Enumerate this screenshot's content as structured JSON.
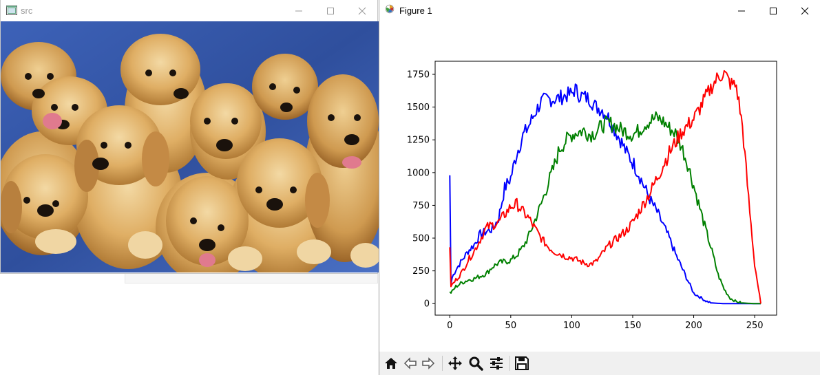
{
  "src_window": {
    "title": "src",
    "image_desc_icon": "image-window-icon",
    "controls": [
      "minimize-icon",
      "maximize-icon",
      "close-icon"
    ]
  },
  "figure_window": {
    "title": "Figure 1",
    "app_icon": "matplotlib-icon",
    "controls": [
      "minimize-icon",
      "maximize-icon",
      "close-icon"
    ],
    "toolbar": [
      "home-icon",
      "back-icon",
      "forward-icon",
      "pan-icon",
      "zoom-icon",
      "configure-subplots-icon",
      "save-icon"
    ]
  },
  "chart_data": {
    "type": "line",
    "title": "",
    "xlabel": "",
    "ylabel": "",
    "xlim": [
      -12,
      268
    ],
    "ylim": [
      -88,
      1850
    ],
    "xticks": [
      0,
      50,
      100,
      150,
      200,
      250
    ],
    "yticks": [
      0,
      250,
      500,
      750,
      1000,
      1250,
      1500,
      1750
    ],
    "grid": false,
    "series": [
      {
        "color": "#0000ff",
        "x": [
          0,
          1,
          2,
          5,
          10,
          15,
          20,
          25,
          30,
          35,
          40,
          45,
          50,
          55,
          60,
          65,
          70,
          75,
          80,
          85,
          90,
          95,
          100,
          103,
          105,
          110,
          115,
          120,
          125,
          130,
          135,
          140,
          145,
          150,
          155,
          160,
          165,
          170,
          175,
          180,
          185,
          190,
          195,
          200,
          205,
          210,
          215,
          220,
          225,
          230,
          240,
          250,
          255
        ],
        "y": [
          980,
          150,
          200,
          260,
          330,
          400,
          450,
          530,
          550,
          570,
          650,
          880,
          960,
          1150,
          1280,
          1360,
          1460,
          1540,
          1560,
          1560,
          1570,
          1590,
          1600,
          1640,
          1600,
          1580,
          1560,
          1500,
          1480,
          1420,
          1330,
          1250,
          1150,
          1080,
          990,
          880,
          780,
          700,
          600,
          500,
          380,
          280,
          180,
          80,
          50,
          20,
          5,
          2,
          0,
          0,
          0,
          0,
          0
        ]
      },
      {
        "color": "#008000",
        "x": [
          0,
          1,
          5,
          10,
          15,
          20,
          25,
          30,
          35,
          40,
          45,
          50,
          55,
          60,
          65,
          70,
          75,
          80,
          85,
          90,
          95,
          100,
          105,
          110,
          115,
          120,
          125,
          130,
          135,
          140,
          145,
          150,
          155,
          160,
          165,
          170,
          175,
          180,
          185,
          190,
          195,
          200,
          205,
          210,
          215,
          220,
          225,
          230,
          235,
          240,
          245,
          250,
          255
        ],
        "y": [
          90,
          80,
          130,
          160,
          180,
          190,
          210,
          230,
          280,
          310,
          320,
          330,
          370,
          430,
          520,
          640,
          760,
          900,
          1030,
          1180,
          1240,
          1290,
          1310,
          1320,
          1290,
          1310,
          1360,
          1380,
          1360,
          1330,
          1310,
          1290,
          1320,
          1370,
          1400,
          1420,
          1390,
          1340,
          1300,
          1200,
          1070,
          900,
          730,
          560,
          400,
          220,
          110,
          40,
          15,
          5,
          2,
          0,
          0
        ]
      },
      {
        "color": "#ff0000",
        "x": [
          0,
          1,
          5,
          10,
          15,
          20,
          25,
          30,
          35,
          40,
          45,
          50,
          55,
          60,
          65,
          70,
          75,
          80,
          85,
          90,
          95,
          100,
          105,
          110,
          115,
          120,
          125,
          130,
          135,
          140,
          145,
          150,
          155,
          160,
          165,
          170,
          175,
          180,
          185,
          190,
          195,
          200,
          205,
          210,
          215,
          220,
          225,
          230,
          235,
          240,
          245,
          250,
          255
        ],
        "y": [
          430,
          130,
          180,
          240,
          330,
          400,
          490,
          580,
          600,
          620,
          680,
          740,
          760,
          700,
          650,
          570,
          500,
          440,
          400,
          380,
          360,
          350,
          330,
          310,
          300,
          320,
          380,
          440,
          480,
          520,
          560,
          620,
          700,
          780,
          860,
          960,
          1060,
          1150,
          1230,
          1310,
          1360,
          1410,
          1490,
          1580,
          1660,
          1730,
          1760,
          1680,
          1660,
          1350,
          800,
          300,
          0
        ]
      }
    ]
  }
}
